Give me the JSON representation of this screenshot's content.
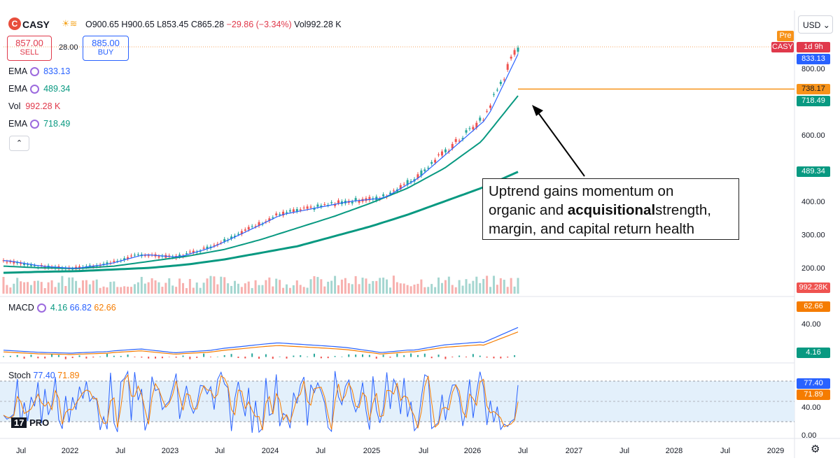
{
  "header": {
    "symbol": "CASY",
    "logo_letter": "C",
    "ohlc": "O900.65 H900.65 L853.45 C865.28",
    "change": "−29.86 (−3.34%)",
    "vol_label": "Vol992.28 K"
  },
  "trade": {
    "sell_price": "857.00",
    "sell_label": "SELL",
    "buy_price": "885.00",
    "buy_label": "BUY",
    "spread": "28.00"
  },
  "indicators": {
    "ema1_label": "EMA",
    "ema1_value": "833.13",
    "ema2_label": "EMA",
    "ema2_value": "489.34",
    "vol_label": "Vol",
    "vol_value": "992.28 K",
    "ema3_label": "EMA",
    "ema3_value": "718.49",
    "macd_label": "MACD",
    "macd_v1": "4.16",
    "macd_v2": "66.82",
    "macd_v3": "62.66",
    "stoch_label": "Stoch",
    "stoch_v1": "77.40",
    "stoch_v2": "71.89"
  },
  "collapse_label": "⌃",
  "currency": "USD",
  "price_tags": {
    "pre": "Pre",
    "casy": "CASY",
    "countdown": "1d 9h",
    "ema1": "833.13",
    "hline": "738.17",
    "ema3": "718.49",
    "ema2": "489.34",
    "vol": "992.28K",
    "macd2": "62.66",
    "macd1": "4.16",
    "stoch1": "77.40",
    "stoch2": "71.89"
  },
  "colors": {
    "up": "#26a69a",
    "down": "#ef5350",
    "ema_fast": "#2962ff",
    "ema_slow": "#089981",
    "hline": "#f7931a",
    "macd_signal": "#f57c00",
    "stoch_band": "#e3f0fb"
  },
  "annotation": {
    "line1": "Uptrend gains momentum on",
    "line2a": "organic and ",
    "line2b": "acquisitional",
    "line2c": "strength,",
    "line3": "margin, and capital return health"
  },
  "tv_logo": "TV PRO",
  "chart_data": {
    "type": "line",
    "title": "CASY",
    "x_ticks": [
      "Jul",
      "2022",
      "Jul",
      "2023",
      "Jul",
      "2024",
      "Jul",
      "2025",
      "Jul",
      "2026",
      "Jul",
      "2027",
      "Jul",
      "2028",
      "Jul",
      "2029"
    ],
    "price_axis_ticks": [
      200,
      300,
      400,
      500,
      600,
      700,
      800
    ],
    "price_axis_labels": [
      "200.00",
      "300.00",
      "400.00",
      "",
      "600.00",
      "",
      "800.00"
    ],
    "macd_axis_ticks": [
      "40.00"
    ],
    "stoch_axis_ticks": [
      "40.00",
      "0.00"
    ],
    "horizontal_line": 738.17,
    "series": [
      {
        "name": "EMA",
        "values_by_quarter": [
          205,
          200,
          198,
          205,
          220,
          235,
          255,
          285,
          320,
          355,
          395,
          440,
          500,
          580,
          718
        ]
      },
      {
        "name": "EMA",
        "values_by_quarter": [
          185,
          188,
          190,
          195,
          200,
          210,
          225,
          245,
          265,
          295,
          325,
          360,
          400,
          440,
          489
        ]
      }
    ],
    "price_by_quarter": [
      222,
      205,
      198,
      212,
      240,
      232,
      262,
      310,
      360,
      380,
      400,
      410,
      470,
      560,
      650,
      865
    ]
  }
}
